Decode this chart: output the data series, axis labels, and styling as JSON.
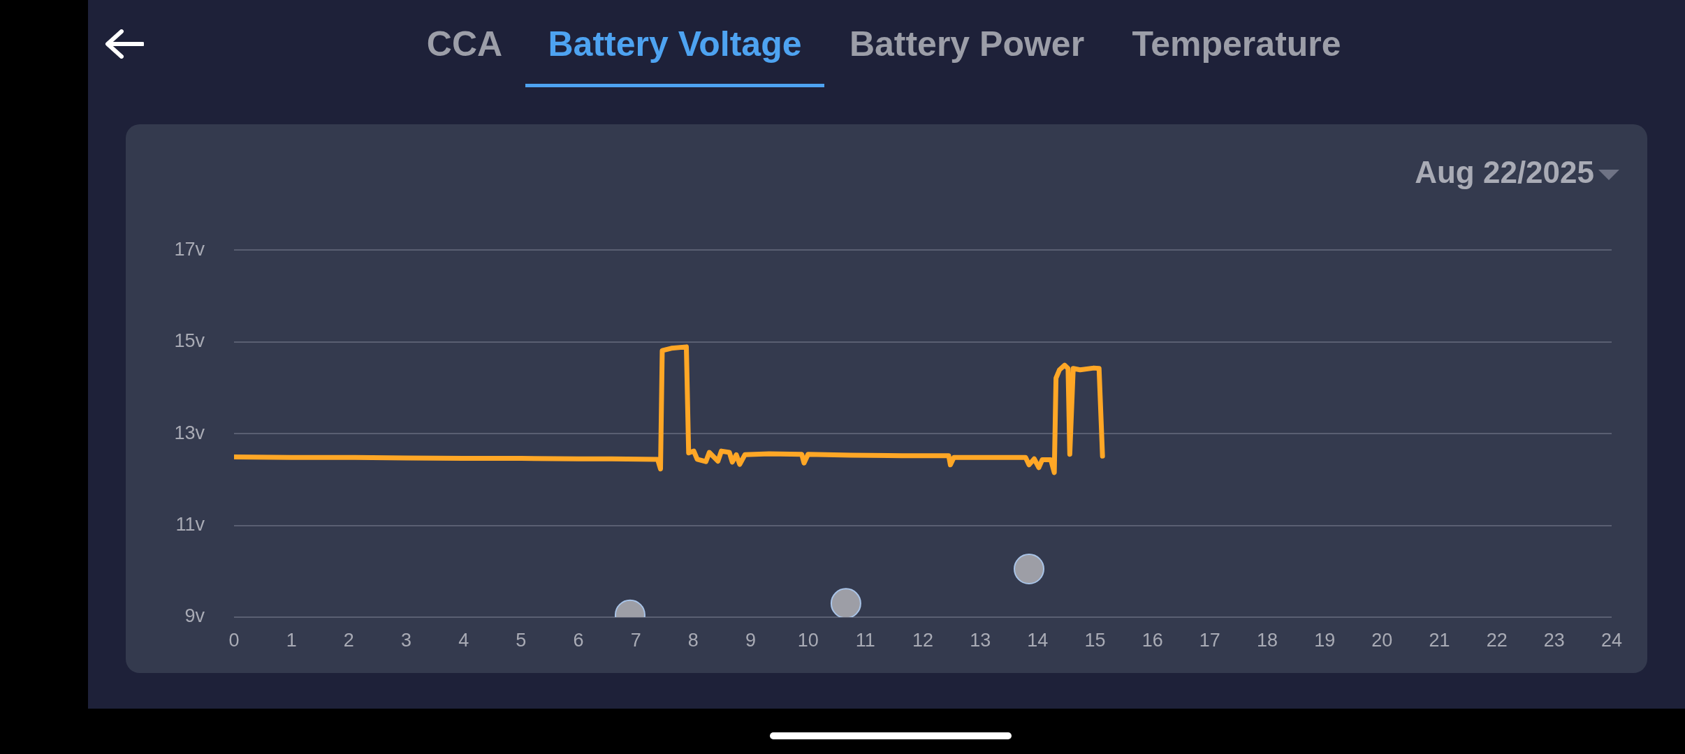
{
  "chart_data": {
    "type": "line",
    "title": "Battery Voltage",
    "subtitle": "Aug 22/2025",
    "annotations": [
      "CCA",
      "Battery Power",
      "Temperature"
    ],
    "xlim": [
      0,
      24
    ],
    "xticks": [
      0,
      1,
      2,
      3,
      4,
      5,
      6,
      7,
      8,
      9,
      10,
      11,
      12,
      13,
      14,
      15,
      16,
      17,
      18,
      19,
      20,
      21,
      22,
      23,
      24
    ],
    "ylim": [
      9,
      17
    ],
    "yticks": [
      {
        "value": 9,
        "label": "9v"
      },
      {
        "value": 11,
        "label": "11v"
      },
      {
        "value": 13,
        "label": "13v"
      },
      {
        "value": 15,
        "label": "15v"
      },
      {
        "value": 17,
        "label": "17v"
      }
    ],
    "grid": "y",
    "line_style": "solid",
    "series": [
      {
        "type": "line",
        "color": "#ffa726",
        "x": [
          0,
          1,
          2,
          3,
          4,
          5,
          6,
          6.58,
          7.38,
          7.43,
          7.46,
          7.62,
          7.88,
          7.92,
          8.01,
          8.07,
          8.22,
          8.28,
          8.43,
          8.49,
          8.63,
          8.68,
          8.75,
          8.81,
          8.9,
          9.32,
          9.89,
          9.93,
          10,
          10.75,
          11.64,
          12.45,
          12.48,
          12.54,
          13.79,
          13.85,
          13.94,
          14.02,
          14.08,
          14.23,
          14.29,
          14.32,
          14.38,
          14.47,
          14.53,
          14.56,
          14.62,
          14.74,
          14.98,
          15.07,
          15.13
        ],
        "values": [
          12.49,
          12.48,
          12.48,
          12.47,
          12.46,
          12.46,
          12.45,
          12.45,
          12.44,
          12.23,
          14.81,
          14.86,
          14.89,
          12.58,
          12.62,
          12.44,
          12.39,
          12.59,
          12.4,
          12.62,
          12.59,
          12.38,
          12.54,
          12.33,
          12.54,
          12.56,
          12.55,
          12.36,
          12.55,
          12.53,
          12.52,
          12.52,
          12.32,
          12.48,
          12.48,
          12.32,
          12.45,
          12.26,
          12.43,
          12.43,
          12.15,
          14.21,
          14.39,
          14.49,
          14.42,
          12.55,
          14.42,
          14.39,
          14.43,
          14.42,
          12.51
        ]
      },
      {
        "type": "scatter",
        "color": "#9d9ea6",
        "marker": "circle",
        "x": [
          6.9,
          10.66,
          13.85
        ],
        "values": [
          9.05,
          9.3,
          10.05
        ]
      }
    ]
  }
}
